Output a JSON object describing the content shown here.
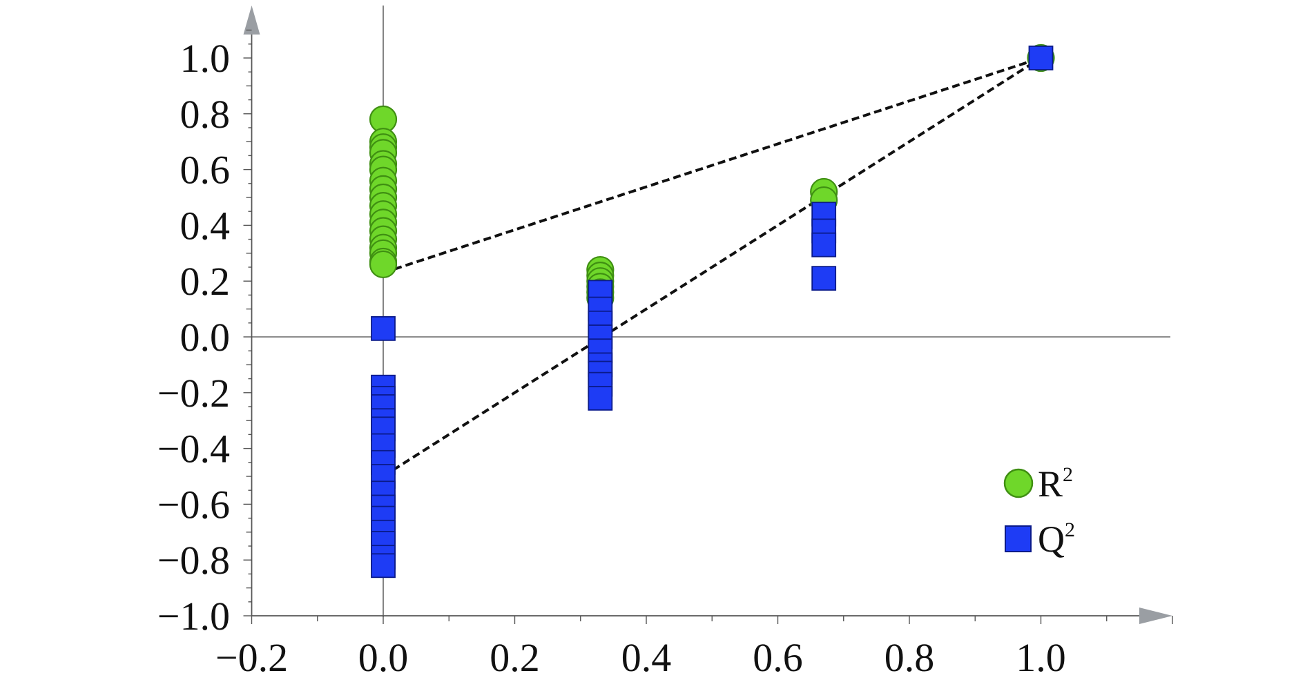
{
  "chart_data": {
    "type": "scatter",
    "title": "",
    "xlabel": "",
    "ylabel": "",
    "xlim": [
      -0.2,
      1.2
    ],
    "ylim": [
      -1.0,
      1.1
    ],
    "x_ticks": [
      "-0.2",
      "0.0",
      "0.2",
      "0.4",
      "0.6",
      "0.8",
      "1.0"
    ],
    "y_ticks": [
      "-1.0",
      "-0.8",
      "-0.6",
      "-0.4",
      "-0.2",
      "0.0",
      "0.2",
      "0.4",
      "0.6",
      "0.8",
      "1.0"
    ],
    "grid": false,
    "legend_position": "bottom-right",
    "series": [
      {
        "name": "R²",
        "marker": "circle",
        "color": "#6fd72a",
        "edge_color": "#3f8f12",
        "points": [
          [
            0.0,
            0.78
          ],
          [
            0.0,
            0.7
          ],
          [
            0.0,
            0.68
          ],
          [
            0.0,
            0.66
          ],
          [
            0.0,
            0.62
          ],
          [
            0.0,
            0.6
          ],
          [
            0.0,
            0.56
          ],
          [
            0.0,
            0.53
          ],
          [
            0.0,
            0.5
          ],
          [
            0.0,
            0.47
          ],
          [
            0.0,
            0.44
          ],
          [
            0.0,
            0.41
          ],
          [
            0.0,
            0.38
          ],
          [
            0.0,
            0.35
          ],
          [
            0.0,
            0.32
          ],
          [
            0.0,
            0.3
          ],
          [
            0.0,
            0.27
          ],
          [
            0.0,
            0.26
          ],
          [
            0.33,
            0.24
          ],
          [
            0.33,
            0.22
          ],
          [
            0.33,
            0.2
          ],
          [
            0.33,
            0.18
          ],
          [
            0.33,
            0.16
          ],
          [
            0.33,
            0.14
          ],
          [
            0.67,
            0.52
          ],
          [
            0.67,
            0.49
          ],
          [
            1.0,
            1.0
          ]
        ]
      },
      {
        "name": "Q²",
        "marker": "square",
        "color": "#1e3cf5",
        "edge_color": "#0a1a8a",
        "points": [
          [
            0.0,
            0.03
          ],
          [
            0.0,
            -0.18
          ],
          [
            0.0,
            -0.22
          ],
          [
            0.0,
            -0.25
          ],
          [
            0.0,
            -0.3
          ],
          [
            0.0,
            -0.33
          ],
          [
            0.0,
            -0.39
          ],
          [
            0.0,
            -0.45
          ],
          [
            0.0,
            -0.5
          ],
          [
            0.0,
            -0.56
          ],
          [
            0.0,
            -0.61
          ],
          [
            0.0,
            -0.65
          ],
          [
            0.0,
            -0.7
          ],
          [
            0.0,
            -0.74
          ],
          [
            0.0,
            -0.79
          ],
          [
            0.0,
            -0.82
          ],
          [
            0.33,
            0.16
          ],
          [
            0.33,
            0.1
          ],
          [
            0.33,
            0.05
          ],
          [
            0.33,
            0.0
          ],
          [
            0.33,
            -0.05
          ],
          [
            0.33,
            -0.1
          ],
          [
            0.33,
            -0.13
          ],
          [
            0.33,
            -0.17
          ],
          [
            0.33,
            -0.22
          ],
          [
            0.67,
            0.44
          ],
          [
            0.67,
            0.38
          ],
          [
            0.67,
            0.33
          ],
          [
            0.67,
            0.21
          ],
          [
            1.0,
            1.0
          ]
        ]
      }
    ],
    "regression_lines": [
      {
        "series": "R²",
        "points": [
          [
            0.0,
            0.23
          ],
          [
            1.0,
            1.0
          ]
        ],
        "style": "dashed"
      },
      {
        "series": "Q²",
        "points": [
          [
            0.0,
            -0.5
          ],
          [
            1.0,
            1.0
          ]
        ],
        "style": "dashed"
      }
    ]
  },
  "legend": {
    "r2_label": "R",
    "q2_label": "Q",
    "superscript": "2"
  },
  "colors": {
    "axis": "#555555",
    "arrow": "#9a9ea3"
  }
}
